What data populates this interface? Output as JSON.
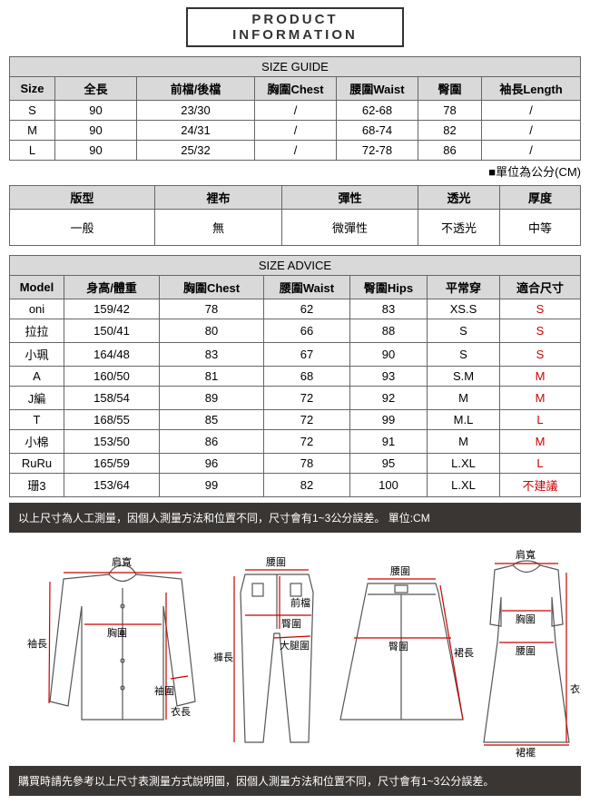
{
  "title": "PRODUCT INFORMATION",
  "sizeGuide": {
    "header": "SIZE GUIDE",
    "columns": [
      "Size",
      "全長",
      "前檔/後檔",
      "胸圍Chest",
      "腰圍Waist",
      "臀圍",
      "袖長Length"
    ],
    "rows": [
      [
        "S",
        "90",
        "23/30",
        "/",
        "62-68",
        "78",
        "/"
      ],
      [
        "M",
        "90",
        "24/31",
        "/",
        "68-74",
        "82",
        "/"
      ],
      [
        "L",
        "90",
        "25/32",
        "/",
        "72-78",
        "86",
        "/"
      ]
    ],
    "unitNote": "■單位為公分(CM)"
  },
  "attrs": {
    "columns": [
      "版型",
      "裡布",
      "彈性",
      "透光",
      "厚度"
    ],
    "row": [
      "一般",
      "無",
      "微彈性",
      "不透光",
      "中等"
    ]
  },
  "advice": {
    "header": "SIZE ADVICE",
    "columns": [
      "Model",
      "身高/體重",
      "胸圍Chest",
      "腰圍Waist",
      "臀圍Hips",
      "平常穿",
      "適合尺寸"
    ],
    "rows": [
      {
        "c": [
          "oni",
          "159/42",
          "78",
          "62",
          "83",
          "XS.S",
          "S"
        ],
        "last_red": true
      },
      {
        "c": [
          "拉拉",
          "150/41",
          "80",
          "66",
          "88",
          "S",
          "S"
        ],
        "last_red": true
      },
      {
        "c": [
          "小珮",
          "164/48",
          "83",
          "67",
          "90",
          "S",
          "S"
        ],
        "last_red": true
      },
      {
        "c": [
          "A",
          "160/50",
          "81",
          "68",
          "93",
          "S.M",
          "M"
        ],
        "last_red": true
      },
      {
        "c": [
          "J編",
          "158/54",
          "89",
          "72",
          "92",
          "M",
          "M"
        ],
        "last_red": true
      },
      {
        "c": [
          "T",
          "168/55",
          "85",
          "72",
          "99",
          "M.L",
          "L"
        ],
        "last_red": true
      },
      {
        "c": [
          "小棉",
          "153/50",
          "86",
          "72",
          "91",
          "M",
          "M"
        ],
        "last_red": true
      },
      {
        "c": [
          "RuRu",
          "165/59",
          "96",
          "78",
          "95",
          "L.XL",
          "L"
        ],
        "last_red": true
      },
      {
        "c": [
          "珊3",
          "153/64",
          "99",
          "82",
          "100",
          "L.XL",
          "不建議"
        ],
        "last_red": true
      }
    ]
  },
  "note1": "以上尺寸為人工測量，因個人測量方法和位置不同，尺寸會有1~3公分誤差。 單位:CM",
  "note2": "購買時請先參考以上尺寸表測量方式說明圖，因個人測量方法和位置不同，尺寸會有1~3公分誤差。",
  "diagram": {
    "stroke": "#555",
    "measure": "#c00",
    "labels": {
      "shoulder": "肩寬",
      "chest": "胸圍",
      "sleeve": "袖長",
      "cuff": "袖圍",
      "length": "衣長",
      "waist": "腰圍",
      "front": "前檔",
      "hip": "臀圍",
      "thigh": "大腿圍",
      "pantlen": "褲長",
      "skirtlen": "裙長",
      "skirthem": "裙襬"
    }
  },
  "colors": {
    "headerBg": "#d9d9d9",
    "border": "#666",
    "darkBar": "#3a3634",
    "red": "#d00000"
  }
}
